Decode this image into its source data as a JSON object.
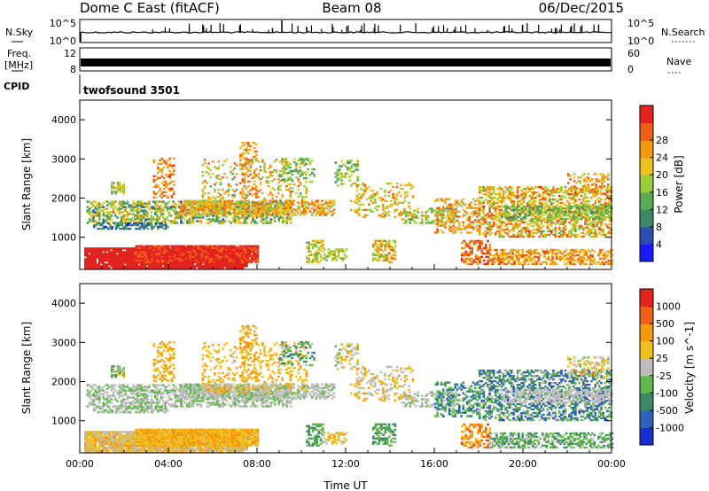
{
  "header": {
    "station": "Dome C East (fitACF)",
    "beam": "Beam 08",
    "date": "06/Dec/2015"
  },
  "panels": {
    "nsky": {
      "label": "N.Sky",
      "tick_top": "10^5",
      "tick_bottom": "10^0",
      "right_label": "N.Search",
      "right_tick_top": "10^5",
      "right_tick_bottom": "10^0"
    },
    "freq": {
      "label_line1": "Freq.",
      "label_line2": "[MHz]",
      "tick_top": "12",
      "tick_bottom": "8",
      "right_label": "Nave",
      "right_tick_top": "60",
      "right_tick_bottom": "0"
    },
    "cpid": {
      "label": "CPID",
      "program": "twofsound 3501"
    }
  },
  "chart_data": [
    {
      "type": "heatmap",
      "name": "power",
      "ylabel": "Slant Range [km]",
      "xlabel": "",
      "xlim": [
        "00:00",
        "00:00"
      ],
      "ylim": [
        180,
        4500
      ],
      "x_ticks": [
        "00:00",
        "04:00",
        "08:00",
        "12:00",
        "16:00",
        "20:00",
        "00:00"
      ],
      "y_ticks": [
        1000,
        2000,
        3000,
        4000
      ],
      "colorbar": {
        "label": "Power [dB]",
        "ticks": [
          4,
          8,
          12,
          16,
          20,
          24,
          28
        ],
        "colors": [
          "#1a1aff",
          "#2a4fb0",
          "#3a8a6a",
          "#5aaa55",
          "#9acd3a",
          "#f0c020",
          "#f39a10",
          "#ee6018",
          "#e32320"
        ]
      }
    },
    {
      "type": "heatmap",
      "name": "velocity",
      "ylabel": "Slant Range [km]",
      "xlabel": "Time UT",
      "xlim": [
        "00:00",
        "00:00"
      ],
      "ylim": [
        180,
        4500
      ],
      "x_ticks": [
        "00:00",
        "04:00",
        "08:00",
        "12:00",
        "16:00",
        "20:00",
        "00:00"
      ],
      "y_ticks": [
        1000,
        2000,
        3000,
        4000
      ],
      "colorbar": {
        "label": "Velocity [m s^-1]",
        "ticks": [
          1000,
          500,
          100,
          25,
          -25,
          -100,
          -500,
          -1000
        ],
        "colors": [
          "#1a2fd0",
          "#2d62b8",
          "#3d8a6a",
          "#62b84a",
          "#bdbdbd",
          "#f0c020",
          "#f39a10",
          "#ee6018",
          "#e32320"
        ]
      }
    }
  ]
}
